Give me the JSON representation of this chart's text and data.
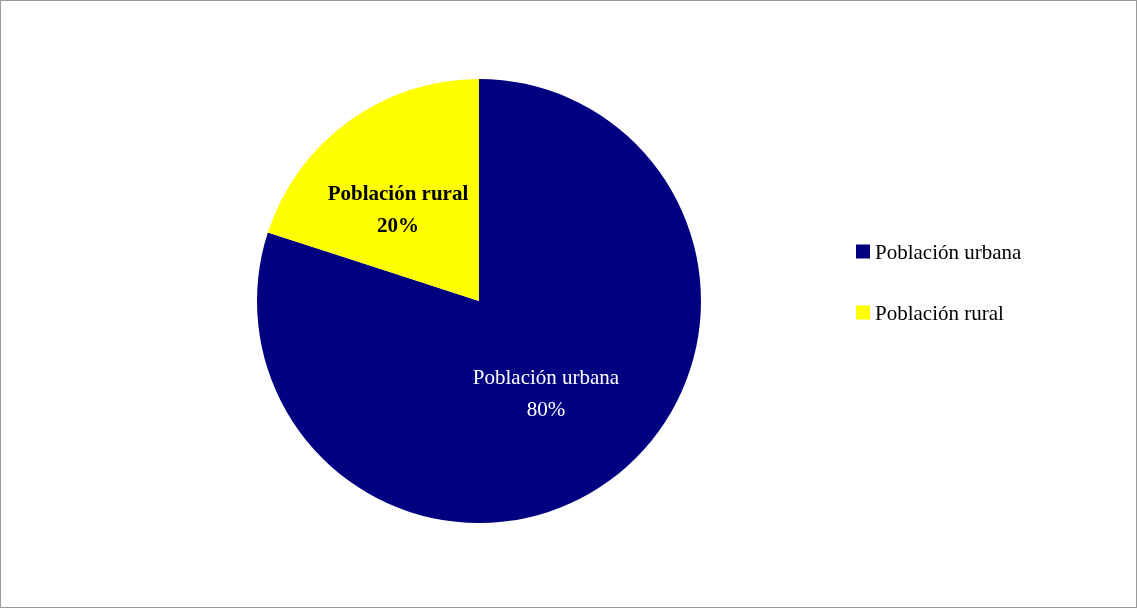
{
  "chart_data": {
    "type": "pie",
    "categories": [
      "Población urbana",
      "Población rural"
    ],
    "values": [
      80,
      20
    ],
    "value_labels": [
      "80%",
      "20%"
    ],
    "colors": [
      "#000080",
      "#ffff00"
    ],
    "legend": "right"
  }
}
